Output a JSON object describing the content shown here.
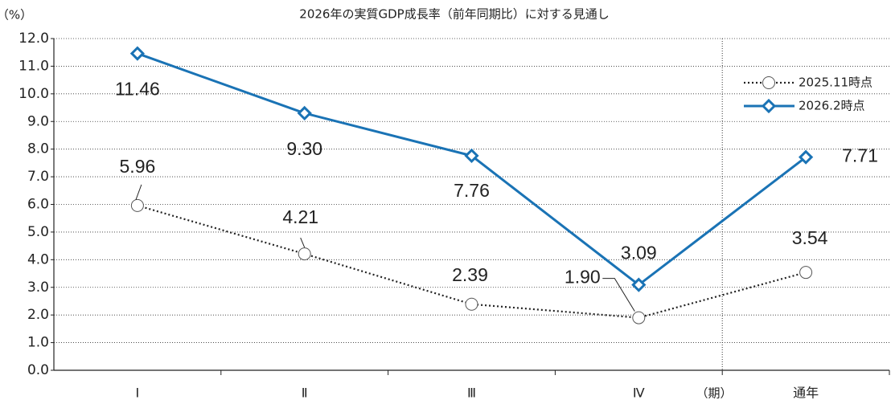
{
  "chart_data": {
    "type": "line",
    "title": "2026年の実質GDP成長率（前年同期比）に対する見通し",
    "y_label": "（%）",
    "x_label": "（期）",
    "categories": [
      "Ⅰ",
      "Ⅱ",
      "Ⅲ",
      "Ⅳ",
      "通年"
    ],
    "series": [
      {
        "name": "2025.11時点",
        "color": "#222222",
        "style": "dotted",
        "marker": "circle",
        "values": [
          5.96,
          4.21,
          2.39,
          1.9,
          3.54
        ],
        "value_labels": [
          "5.96",
          "4.21",
          "2.39",
          "1.90",
          "3.54"
        ]
      },
      {
        "name": "2026.2時点",
        "color": "#1a73b5",
        "style": "solid",
        "marker": "diamond",
        "values": [
          11.46,
          9.3,
          7.76,
          3.09,
          7.71
        ],
        "value_labels": [
          "11.46",
          "9.30",
          "7.76",
          "3.09",
          "7.71"
        ]
      }
    ],
    "ylim": [
      0,
      12
    ],
    "yticks": [
      {
        "value": 0,
        "label": "0.0"
      },
      {
        "value": 1,
        "label": "1.0"
      },
      {
        "value": 2,
        "label": "2.0"
      },
      {
        "value": 3,
        "label": "3.0"
      },
      {
        "value": 4,
        "label": "4.0"
      },
      {
        "value": 5,
        "label": "5.0"
      },
      {
        "value": 6,
        "label": "6.0"
      },
      {
        "value": 7,
        "label": "7.0"
      },
      {
        "value": 8,
        "label": "8.0"
      },
      {
        "value": 9,
        "label": "9.0"
      },
      {
        "value": 10,
        "label": "10.0"
      },
      {
        "value": 11,
        "label": "11.0"
      },
      {
        "value": 12,
        "label": "12.0"
      }
    ],
    "grid": true,
    "legend": "upper right"
  }
}
